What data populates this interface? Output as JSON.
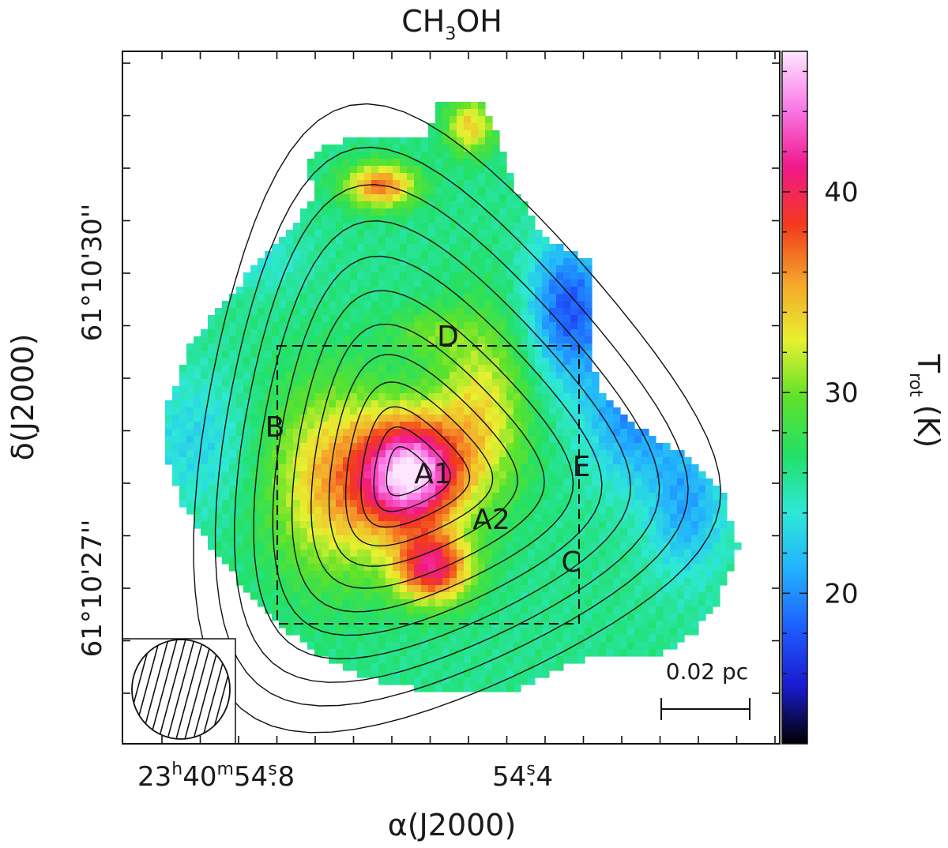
{
  "chart_data": {
    "type": "heatmap",
    "title": "CH3OH",
    "title_parts": {
      "main": "CH",
      "sub": "3",
      "tail": "OH"
    },
    "xlabel": "α(J2000)",
    "ylabel": "δ(J2000)",
    "colorbar": {
      "label": "T_rot (K)",
      "label_parts": {
        "main": "T",
        "sub": "rot",
        "tail": "(K)"
      },
      "range": [
        12.5,
        47.0
      ],
      "ticks": [
        20,
        30,
        40
      ],
      "tick_labels": [
        "20",
        "30",
        "40"
      ],
      "colormap_stops": [
        "#000000",
        "#1a1ad0",
        "#1e5cff",
        "#22b0ff",
        "#2ee8d8",
        "#22e068",
        "#5ee22a",
        "#e8f030",
        "#f5a42a",
        "#f23a1c",
        "#f0188a",
        "#fa78e8",
        "#ffe6ff"
      ]
    },
    "x_ticks": [
      {
        "h": "23",
        "m": "40",
        "s": "54",
        "frac": ".8",
        "label": "23h40m54s.8"
      },
      {
        "s": "54",
        "frac": ".4",
        "label": "54s.4"
      }
    ],
    "y_ticks": [
      {
        "label": "61°10'30''",
        "text": "61°10'30''"
      },
      {
        "label": "61°10'27''",
        "text": "61°10'27''"
      }
    ],
    "unit_marks": {
      "hour": "h",
      "minute": "m",
      "second": "s"
    },
    "peak_labels": [
      "A1",
      "A2",
      "B",
      "C",
      "D",
      "E"
    ],
    "scale_bar": {
      "label": "0.02 pc",
      "length_pc": 0.02
    },
    "beam": {
      "shape": "ellipse",
      "fill": "hatched"
    },
    "dashed_box": true,
    "contours": true,
    "grid": false
  }
}
